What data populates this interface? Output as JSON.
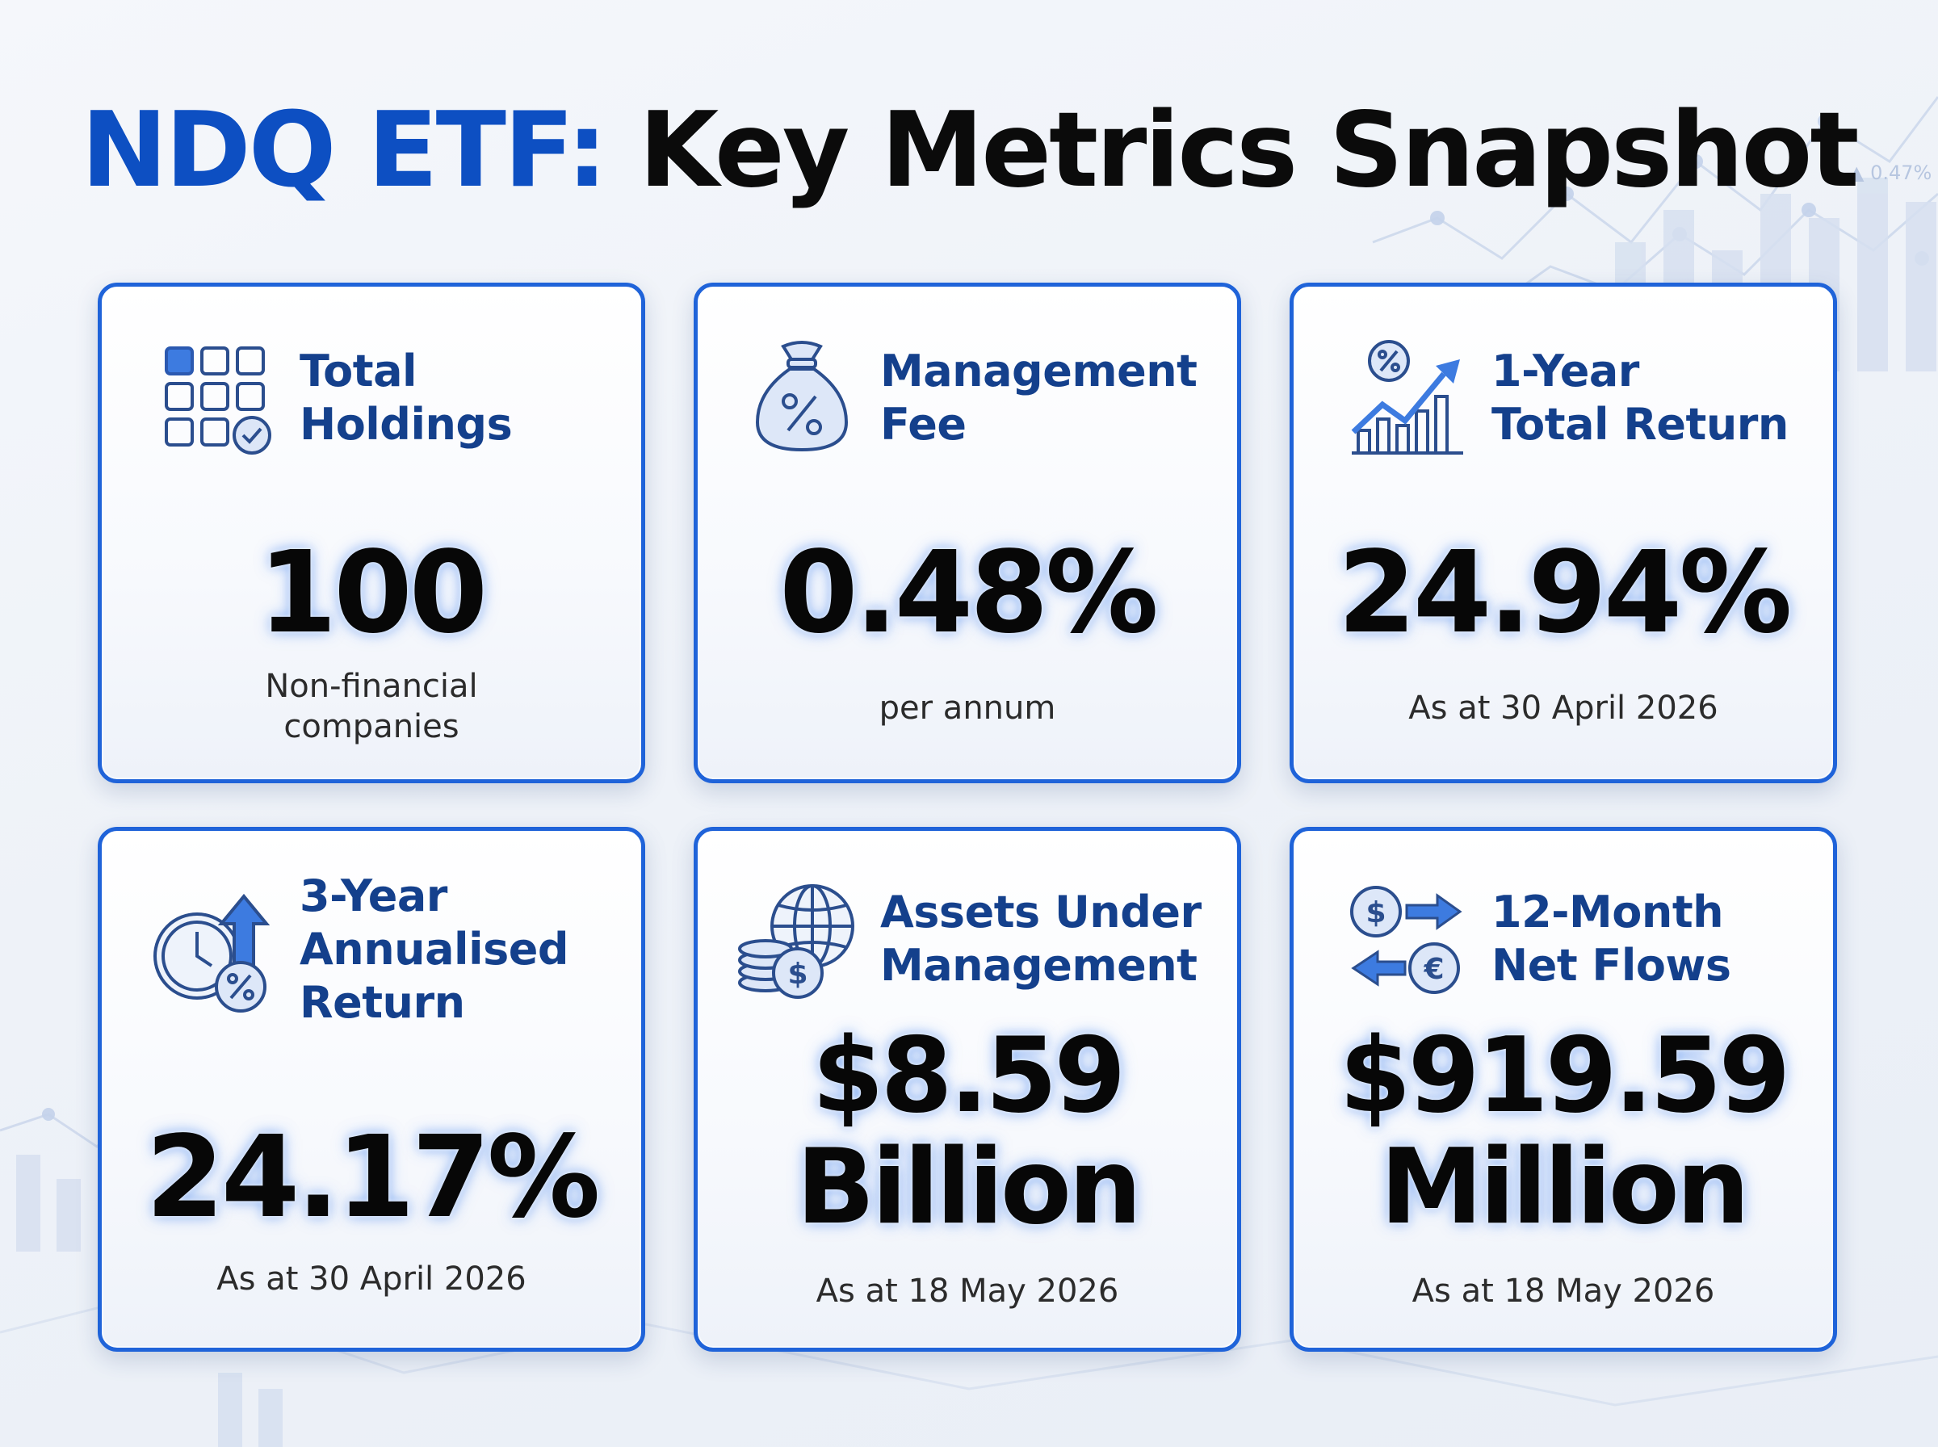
{
  "title": {
    "highlight": "NDQ ETF:",
    "rest": "Key Metrics Snapshot"
  },
  "background": {
    "ticker_text": "▲ 0.47%"
  },
  "colors": {
    "accent": "#0d4fc2",
    "card_border": "#1f63d9",
    "label": "#14408c",
    "value": "#070707"
  },
  "cards": [
    {
      "icon": "holdings-grid-icon",
      "label": [
        "Total",
        "Holdings"
      ],
      "value": [
        "100"
      ],
      "sub": [
        "Non-financial",
        "companies"
      ]
    },
    {
      "icon": "money-bag-percent-icon",
      "label": [
        "Management",
        "Fee"
      ],
      "value": [
        "0.48%"
      ],
      "sub": [
        "per annum"
      ]
    },
    {
      "icon": "growth-chart-icon",
      "label": [
        "1-Year",
        "Total Return"
      ],
      "value": [
        "24.94%"
      ],
      "sub": [
        "As at 30 April 2026"
      ]
    },
    {
      "icon": "clock-arrow-percent-icon",
      "label": [
        "3-Year",
        "Annualised",
        "Return"
      ],
      "value": [
        "24.17%"
      ],
      "sub": [
        "As at 30 April 2026"
      ]
    },
    {
      "icon": "globe-coins-icon",
      "label": [
        "Assets Under",
        "Management"
      ],
      "value": [
        "$8.59",
        "Billion"
      ],
      "sub": [
        "As at 18 May 2026"
      ]
    },
    {
      "icon": "currency-exchange-icon",
      "label": [
        "12-Month",
        "Net Flows"
      ],
      "value": [
        "$919.59",
        "Million"
      ],
      "sub": [
        "As at 18 May 2026"
      ]
    }
  ]
}
